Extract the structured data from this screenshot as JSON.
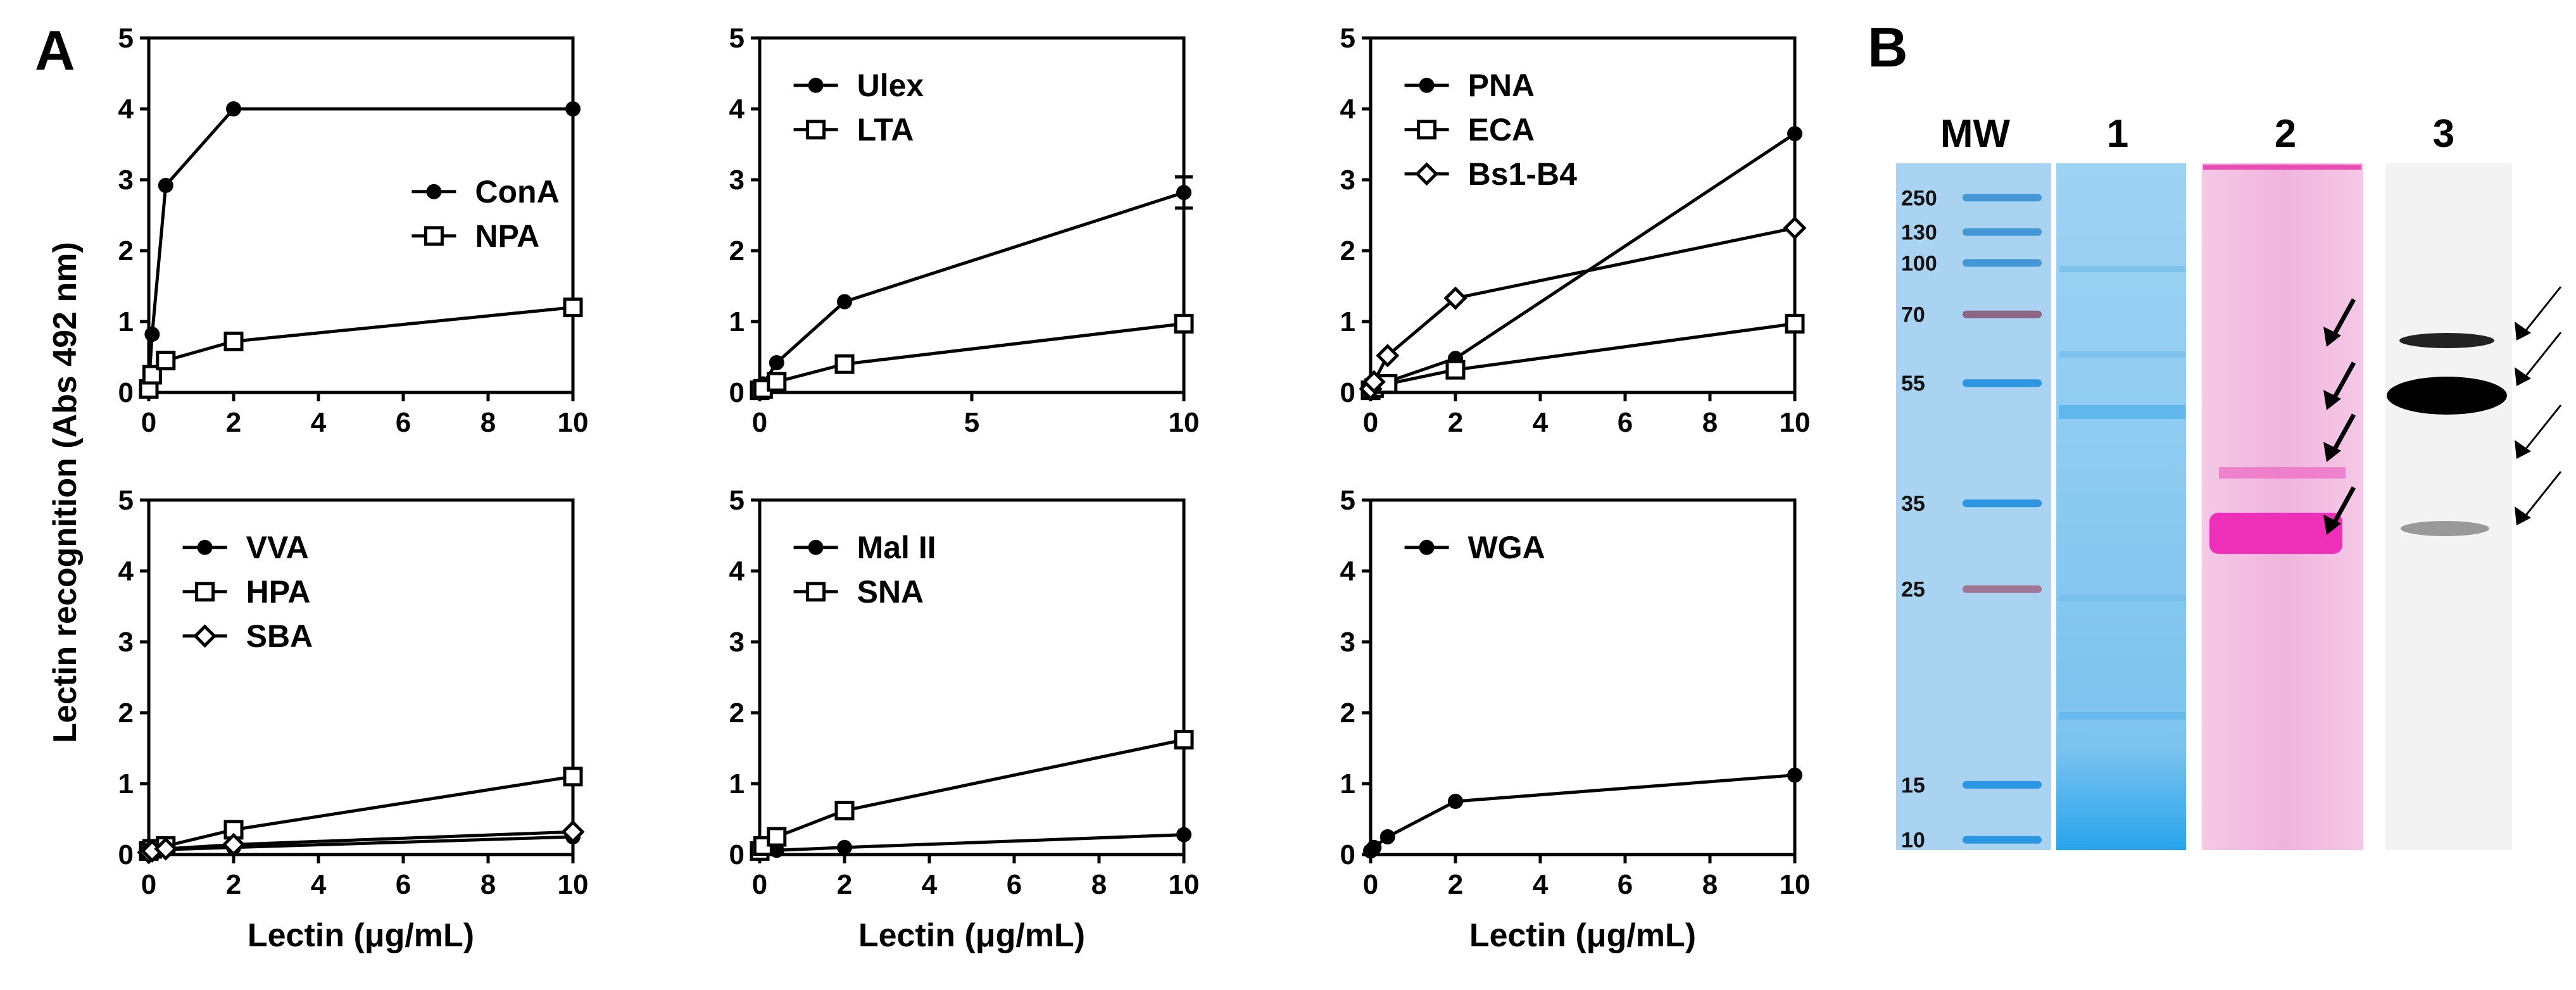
{
  "panel_a_label": "A",
  "panel_b_label": "B",
  "ylabel": "Lectin recognition (Abs 492 nm)",
  "chart_data": [
    {
      "type": "line",
      "xlabel": "",
      "xlim": [
        0,
        10
      ],
      "ylim": [
        0,
        5
      ],
      "xticks": [
        "0",
        "2",
        "4",
        "6",
        "8",
        "10"
      ],
      "yticks": [
        "0",
        "1",
        "2",
        "3",
        "4",
        "5"
      ],
      "legend_position": "center-right",
      "series": [
        {
          "name": "ConA",
          "marker": "circle",
          "x": [
            0,
            0.08,
            0.4,
            2,
            10
          ],
          "y": [
            0.1,
            0.82,
            2.92,
            4.0,
            4.0
          ]
        },
        {
          "name": "NPA",
          "marker": "square",
          "x": [
            0,
            0.08,
            0.4,
            2,
            10
          ],
          "y": [
            0.05,
            0.25,
            0.45,
            0.72,
            1.2
          ]
        }
      ]
    },
    {
      "type": "line",
      "xlabel": "",
      "xlim": [
        0,
        10
      ],
      "ylim": [
        0,
        5
      ],
      "xticks": [
        "0",
        "5",
        "10"
      ],
      "yticks": [
        "0",
        "1",
        "2",
        "3",
        "4",
        "5"
      ],
      "legend_position": "top-left",
      "series": [
        {
          "name": "Ulex",
          "marker": "circle",
          "x": [
            0,
            0.08,
            0.4,
            2,
            10
          ],
          "y": [
            0.05,
            0.12,
            0.42,
            1.28,
            2.82
          ],
          "error": [
            0,
            0,
            0,
            0,
            0.22
          ]
        },
        {
          "name": "LTA",
          "marker": "square",
          "x": [
            0,
            0.08,
            0.4,
            2,
            10
          ],
          "y": [
            0.03,
            0.05,
            0.15,
            0.4,
            0.97
          ]
        }
      ]
    },
    {
      "type": "line",
      "xlabel": "",
      "xlim": [
        0,
        10
      ],
      "ylim": [
        0,
        5
      ],
      "xticks": [
        "0",
        "2",
        "4",
        "6",
        "8",
        "10"
      ],
      "yticks": [
        "0",
        "1",
        "2",
        "3",
        "4",
        "5"
      ],
      "legend_position": "top-left",
      "series": [
        {
          "name": "PNA",
          "marker": "circle",
          "x": [
            0,
            0.08,
            0.4,
            2,
            10
          ],
          "y": [
            0.05,
            0.08,
            0.15,
            0.48,
            3.65
          ]
        },
        {
          "name": "ECA",
          "marker": "square",
          "x": [
            0,
            0.08,
            0.4,
            2,
            10
          ],
          "y": [
            0.03,
            0.06,
            0.12,
            0.32,
            0.97
          ]
        },
        {
          "name": "Bs1-B4",
          "marker": "diamond",
          "x": [
            0,
            0.08,
            0.4,
            2,
            10
          ],
          "y": [
            0.05,
            0.15,
            0.52,
            1.33,
            2.32
          ]
        }
      ]
    },
    {
      "type": "line",
      "xlabel": "Lectin (μg/mL)",
      "xlim": [
        0,
        10
      ],
      "ylim": [
        0,
        5
      ],
      "xticks": [
        "0",
        "2",
        "4",
        "6",
        "8",
        "10"
      ],
      "yticks": [
        "0",
        "1",
        "2",
        "3",
        "4",
        "5"
      ],
      "legend_position": "top-left",
      "series": [
        {
          "name": "VVA",
          "marker": "circle",
          "x": [
            0,
            0.08,
            0.4,
            2,
            10
          ],
          "y": [
            0.03,
            0.05,
            0.07,
            0.1,
            0.25
          ]
        },
        {
          "name": "HPA",
          "marker": "square",
          "x": [
            0,
            0.08,
            0.4,
            2,
            10
          ],
          "y": [
            0.05,
            0.08,
            0.12,
            0.35,
            1.1
          ]
        },
        {
          "name": "SBA",
          "marker": "diamond",
          "x": [
            0,
            0.08,
            0.4,
            2,
            10
          ],
          "y": [
            0.03,
            0.05,
            0.08,
            0.14,
            0.32
          ]
        }
      ]
    },
    {
      "type": "line",
      "xlabel": "Lectin (μg/mL)",
      "xlim": [
        0,
        10
      ],
      "ylim": [
        0,
        5
      ],
      "xticks": [
        "0",
        "2",
        "4",
        "6",
        "8",
        "10"
      ],
      "yticks": [
        "0",
        "1",
        "2",
        "3",
        "4",
        "5"
      ],
      "legend_position": "top-left",
      "series": [
        {
          "name": "Mal II",
          "marker": "circle",
          "x": [
            0,
            0.08,
            0.4,
            2,
            10
          ],
          "y": [
            0.03,
            0.04,
            0.06,
            0.1,
            0.28
          ]
        },
        {
          "name": "SNA",
          "marker": "square",
          "x": [
            0,
            0.08,
            0.4,
            2,
            10
          ],
          "y": [
            0.05,
            0.12,
            0.25,
            0.62,
            1.62
          ]
        }
      ]
    },
    {
      "type": "line",
      "xlabel": "Lectin (μg/mL)",
      "xlim": [
        0,
        10
      ],
      "ylim": [
        0,
        5
      ],
      "xticks": [
        "0",
        "2",
        "4",
        "6",
        "8",
        "10"
      ],
      "yticks": [
        "0",
        "1",
        "2",
        "3",
        "4",
        "5"
      ],
      "legend_position": "top-left",
      "series": [
        {
          "name": "WGA",
          "marker": "circle",
          "x": [
            0,
            0.08,
            0.4,
            2,
            10
          ],
          "y": [
            0.05,
            0.1,
            0.25,
            0.75,
            1.12
          ]
        }
      ]
    }
  ],
  "gel": {
    "lanes": [
      "MW",
      "1",
      "2",
      "3"
    ],
    "mw_markers": [
      "250",
      "130",
      "100",
      "70",
      "55",
      "35",
      "25",
      "15",
      "10"
    ],
    "lane_colors": {
      "MW": "#a9d3f0",
      "1": "#8ccbef",
      "2": "#f3c3e4",
      "3": "#f2f2f2"
    },
    "marker_band_colors": {
      "250": "#3a8fd0",
      "130": "#3a8fd0",
      "100": "#3a8fd0",
      "70": "#8a5a7a",
      "55": "#1f8fe0",
      "35": "#1f8fe0",
      "25": "#a06a8a",
      "15": "#1f8fe0",
      "10": "#1f8fe0"
    },
    "arrow_count_lane2": 4,
    "arrow_count_lane3": 4
  }
}
